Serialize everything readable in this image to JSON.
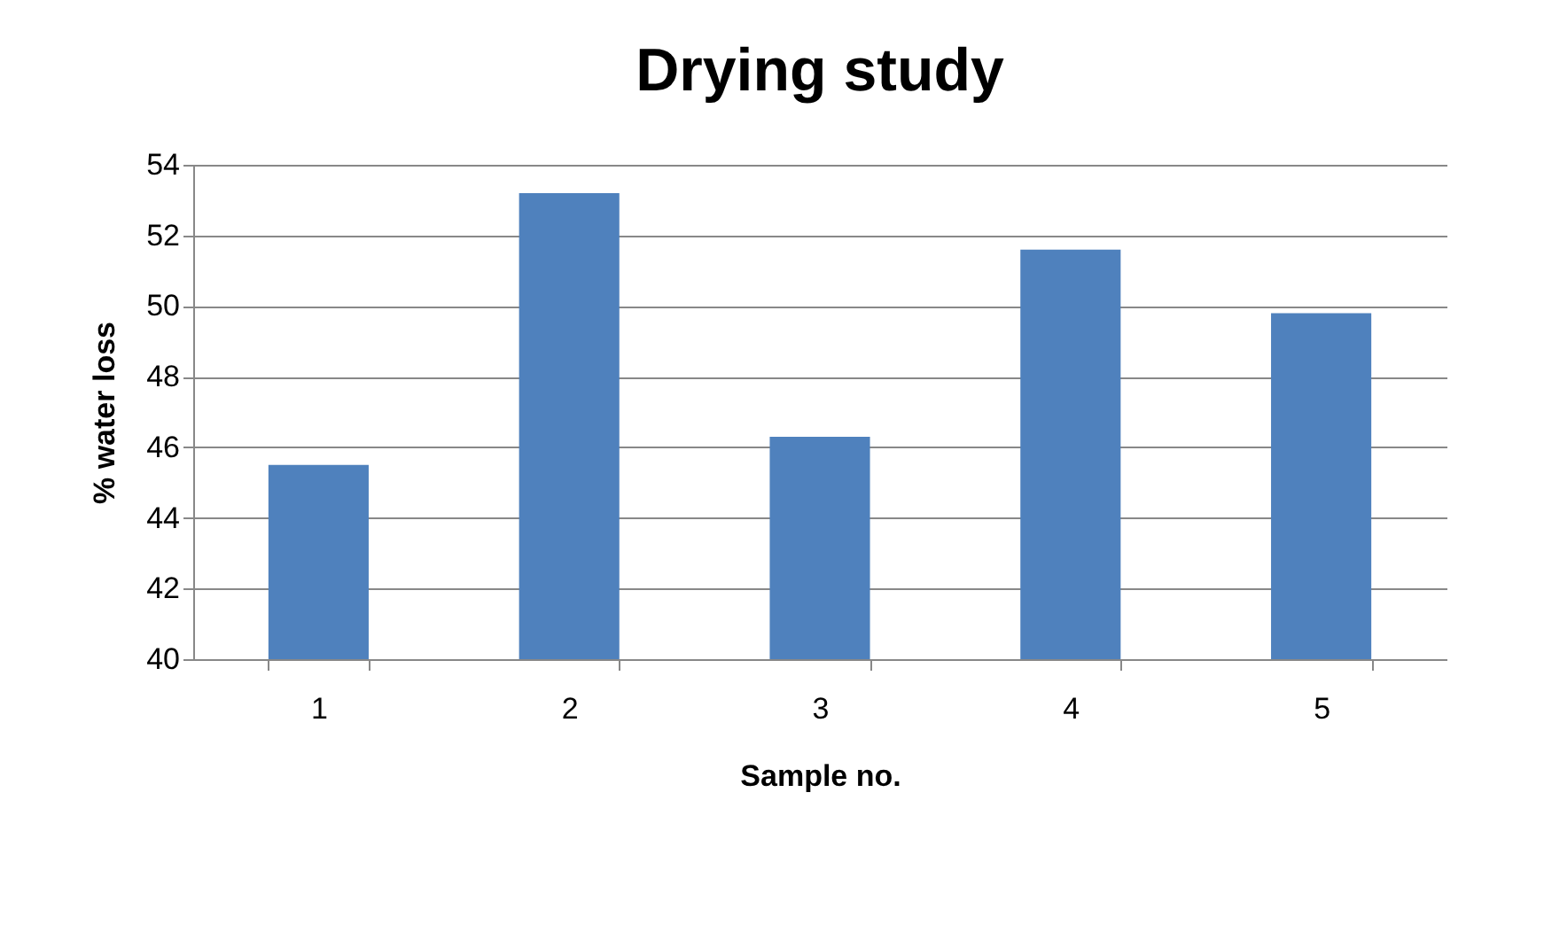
{
  "chart_data": {
    "type": "bar",
    "title": "Drying study",
    "xlabel": "Sample no.",
    "ylabel": "% water loss",
    "categories": [
      "1",
      "2",
      "3",
      "4",
      "5"
    ],
    "values": [
      45.5,
      53.2,
      46.3,
      51.6,
      49.8
    ],
    "color": "#4f81bd",
    "ylim": [
      40,
      54
    ],
    "yticks": [
      40,
      42,
      44,
      46,
      48,
      50,
      52,
      54
    ],
    "grid": "y"
  }
}
